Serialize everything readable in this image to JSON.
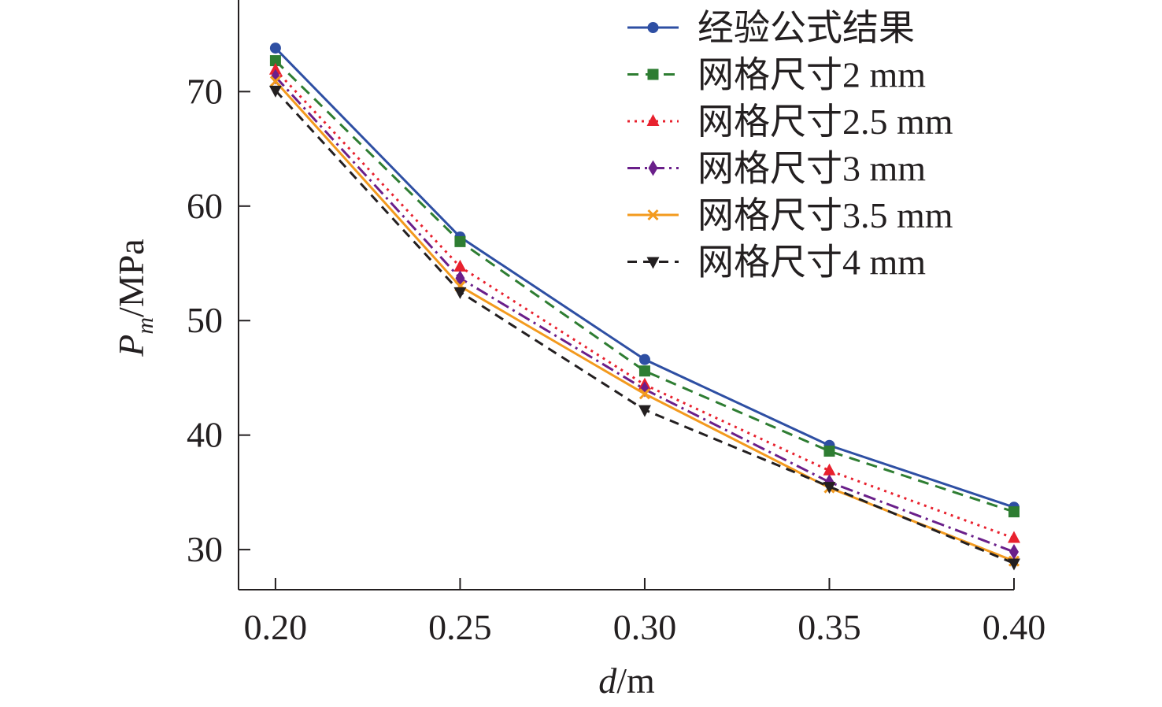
{
  "chart_data": {
    "type": "line",
    "title": "",
    "xlabel": "d/m",
    "xlabel_var": "d",
    "xlabel_unit": "/m",
    "ylabel": "Pm/MPa",
    "ylabel_var": "P",
    "ylabel_sub": "m",
    "ylabel_unit": "/MPa",
    "x": [
      0.2,
      0.25,
      0.3,
      0.35,
      0.4
    ],
    "x_tick_labels": [
      "0.20",
      "0.25",
      "0.30",
      "0.35",
      "0.40"
    ],
    "y_ticks": [
      30,
      40,
      50,
      60,
      70
    ],
    "y_tick_labels": [
      "30",
      "40",
      "50",
      "60",
      "70"
    ],
    "xlim": [
      0.19,
      0.4
    ],
    "ylim": [
      26.5,
      78.0
    ],
    "grid": false,
    "legend_position": "top-right",
    "series": [
      {
        "name": "经验公式结果",
        "values": [
          73.8,
          57.3,
          46.6,
          39.1,
          33.7
        ],
        "color": "#2e4fa3",
        "dash": "",
        "marker": "circle"
      },
      {
        "name": "网格尺寸2 mm",
        "values": [
          72.7,
          56.9,
          45.6,
          38.6,
          33.3
        ],
        "color": "#2e7d32",
        "dash": "14,9",
        "marker": "square"
      },
      {
        "name": "网格尺寸2.5 mm",
        "values": [
          71.9,
          54.7,
          44.4,
          36.9,
          31.0
        ],
        "color": "#e8212e",
        "dash": "3,6",
        "marker": "triangle-up"
      },
      {
        "name": "网格尺寸3 mm",
        "values": [
          71.3,
          53.7,
          44.0,
          35.9,
          29.8
        ],
        "color": "#6a1f8a",
        "dash": "16,6,3,6",
        "marker": "diamond"
      },
      {
        "name": "网格尺寸3.5 mm",
        "values": [
          70.9,
          53.0,
          43.6,
          35.4,
          29.0
        ],
        "color": "#f39a1e",
        "dash": "",
        "marker": "x"
      },
      {
        "name": "网格尺寸4 mm",
        "values": [
          70.1,
          52.5,
          42.2,
          35.5,
          28.8
        ],
        "color": "#231f20",
        "dash": "12,8",
        "marker": "triangle-down"
      }
    ]
  }
}
